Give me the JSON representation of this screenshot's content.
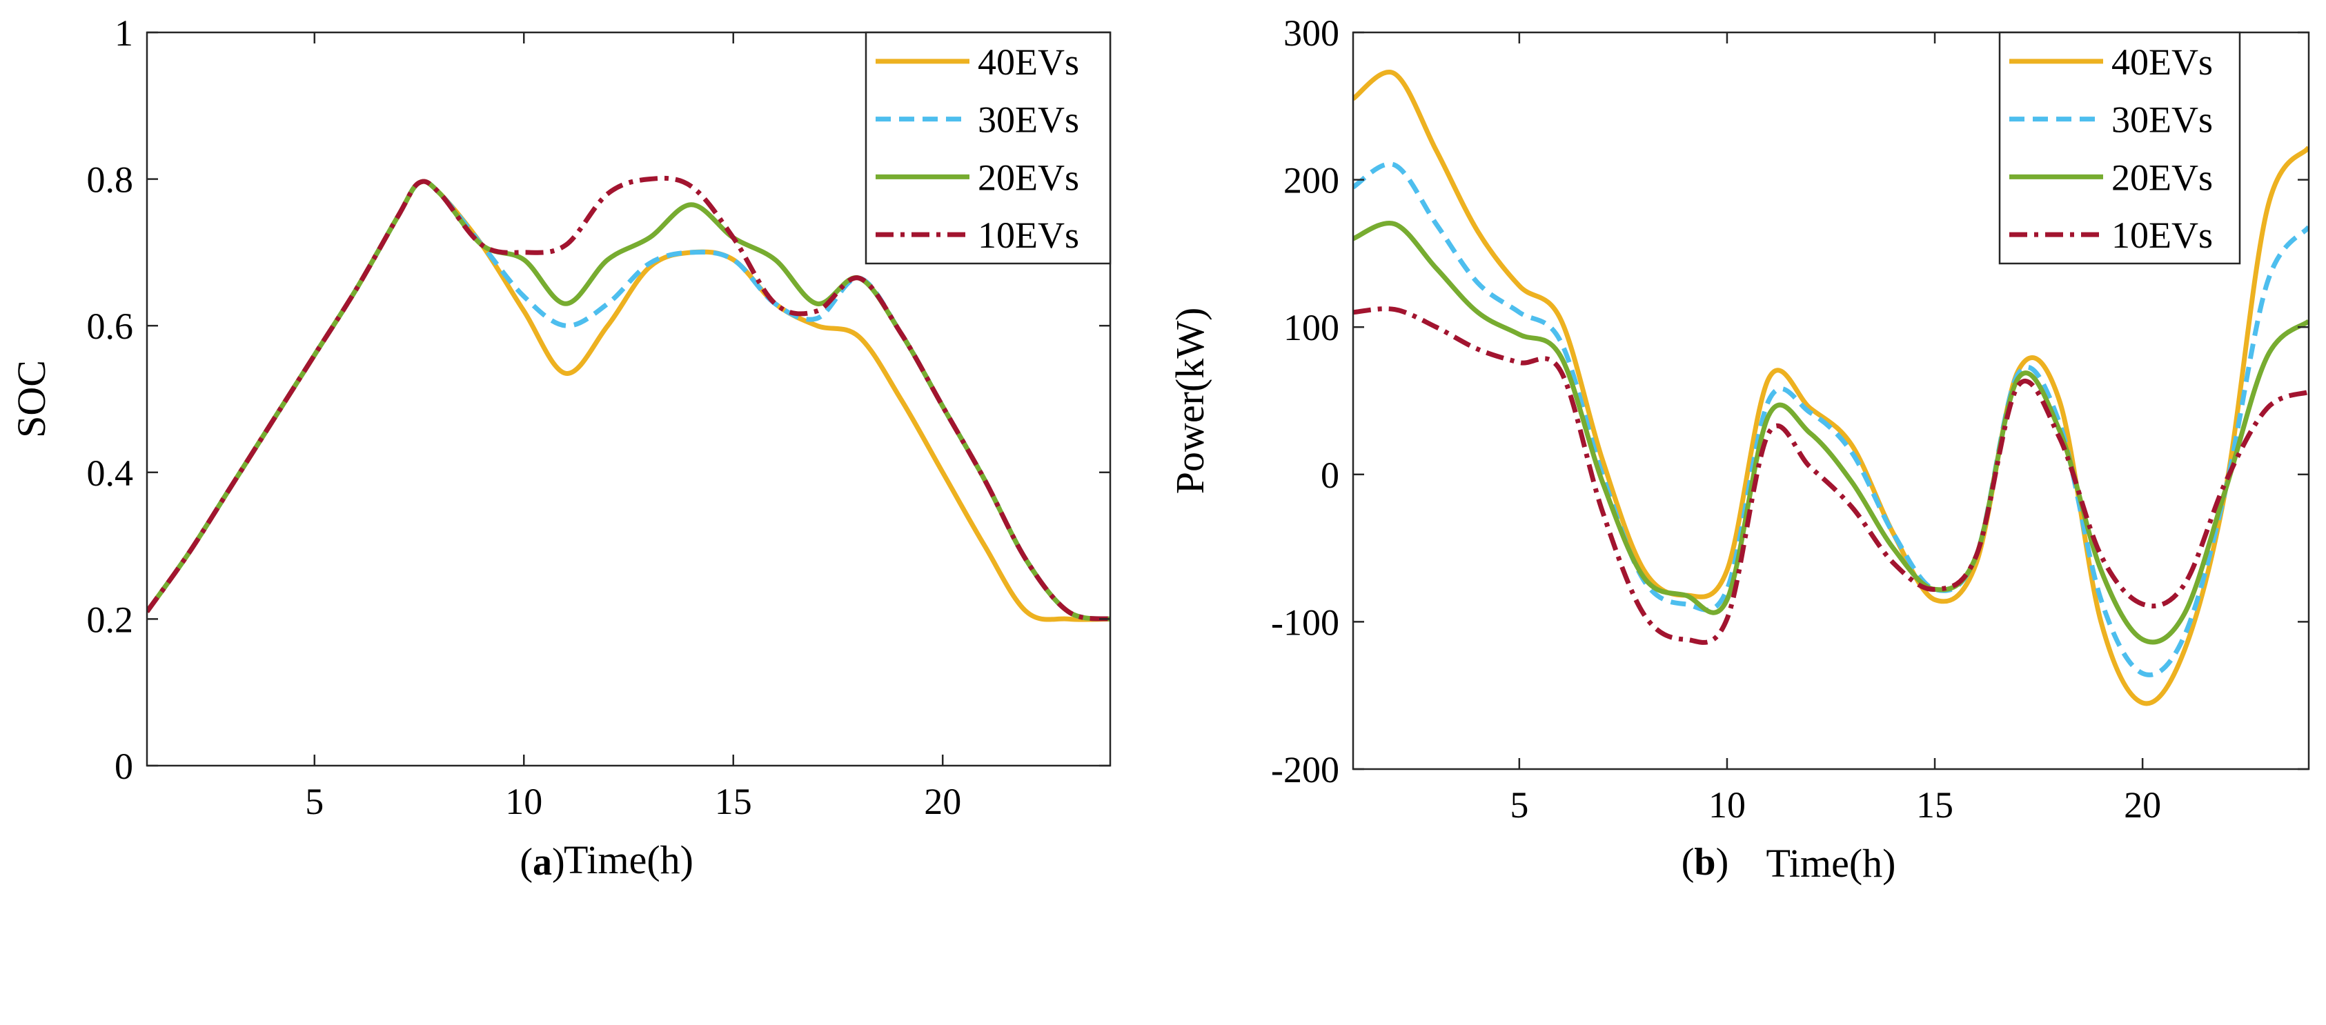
{
  "chart_data": [
    {
      "type": "line",
      "panel_label": "a",
      "xlabel": "Time(h)",
      "ylabel": "SOC",
      "xlim": [
        1,
        24
      ],
      "ylim": [
        0,
        1
      ],
      "xticks": [
        5,
        10,
        15,
        20
      ],
      "xtick_labels": [
        "5",
        "10",
        "15",
        "20"
      ],
      "yticks": [
        0,
        0.2,
        0.4,
        0.6,
        0.8,
        1
      ],
      "ytick_labels": [
        "0",
        "0.2",
        "0.4",
        "0.6",
        "0.8",
        "1"
      ],
      "legend_position": "top-right",
      "x": [
        1,
        2,
        3,
        4,
        5,
        6,
        7,
        7.5,
        8,
        9,
        10,
        11,
        12,
        13,
        14,
        15,
        16,
        17,
        18,
        19,
        20,
        21,
        22,
        23,
        24
      ],
      "series": [
        {
          "name": "40EVs",
          "color": "#EDB120",
          "dash": "solid",
          "values": [
            0.21,
            0.29,
            0.38,
            0.47,
            0.56,
            0.65,
            0.75,
            0.795,
            0.78,
            0.71,
            0.62,
            0.535,
            0.6,
            0.68,
            0.7,
            0.69,
            0.63,
            0.6,
            0.585,
            0.5,
            0.4,
            0.3,
            0.21,
            0.2,
            0.2
          ]
        },
        {
          "name": "30EVs",
          "color": "#4DBEEE",
          "dash": "dashed",
          "values": [
            0.21,
            0.29,
            0.38,
            0.47,
            0.56,
            0.65,
            0.75,
            0.795,
            0.78,
            0.71,
            0.64,
            0.6,
            0.63,
            0.685,
            0.7,
            0.69,
            0.63,
            0.61,
            0.665,
            0.59,
            0.49,
            0.39,
            0.28,
            0.21,
            0.2
          ]
        },
        {
          "name": "20EVs",
          "color": "#77AC30",
          "dash": "solid",
          "values": [
            0.21,
            0.29,
            0.38,
            0.47,
            0.56,
            0.65,
            0.75,
            0.795,
            0.78,
            0.71,
            0.69,
            0.63,
            0.69,
            0.72,
            0.765,
            0.72,
            0.69,
            0.63,
            0.665,
            0.59,
            0.49,
            0.39,
            0.28,
            0.21,
            0.2
          ]
        },
        {
          "name": "10EVs",
          "color": "#A2142F",
          "dash": "dashdot",
          "values": [
            0.21,
            0.29,
            0.38,
            0.47,
            0.56,
            0.65,
            0.75,
            0.795,
            0.78,
            0.71,
            0.7,
            0.71,
            0.78,
            0.8,
            0.79,
            0.72,
            0.63,
            0.62,
            0.665,
            0.59,
            0.49,
            0.39,
            0.28,
            0.21,
            0.2
          ]
        }
      ]
    },
    {
      "type": "line",
      "panel_label": "b",
      "xlabel": "Time(h)",
      "ylabel": "Power(kW)",
      "xlim": [
        1,
        24
      ],
      "ylim": [
        -200,
        300
      ],
      "xticks": [
        5,
        10,
        15,
        20
      ],
      "xtick_labels": [
        "5",
        "10",
        "15",
        "20"
      ],
      "yticks": [
        -200,
        -100,
        0,
        100,
        200,
        300
      ],
      "ytick_labels": [
        "-200",
        "-100",
        "0",
        "100",
        "200",
        "300"
      ],
      "legend_position": "top-right",
      "x": [
        1,
        2,
        3,
        4,
        5,
        6,
        7,
        8,
        9,
        10,
        11,
        12,
        13,
        14,
        15,
        16,
        17,
        18,
        19,
        20,
        21,
        22,
        23,
        24
      ],
      "series": [
        {
          "name": "40EVs",
          "color": "#EDB120",
          "dash": "solid",
          "values": [
            255,
            272,
            220,
            165,
            128,
            105,
            10,
            -65,
            -82,
            -65,
            65,
            45,
            20,
            -40,
            -85,
            -60,
            70,
            50,
            -100,
            -155,
            -120,
            -10,
            180,
            222
          ]
        },
        {
          "name": "30EVs",
          "color": "#4DBEEE",
          "dash": "dashed",
          "values": [
            195,
            210,
            170,
            130,
            110,
            90,
            0,
            -72,
            -88,
            -78,
            50,
            42,
            15,
            -40,
            -78,
            -55,
            68,
            35,
            -85,
            -135,
            -110,
            -10,
            130,
            168
          ]
        },
        {
          "name": "20EVs",
          "color": "#77AC30",
          "dash": "solid",
          "values": [
            160,
            170,
            140,
            110,
            95,
            80,
            -5,
            -70,
            -82,
            -85,
            40,
            28,
            -5,
            -50,
            -78,
            -55,
            65,
            30,
            -65,
            -112,
            -95,
            -10,
            80,
            104
          ]
        },
        {
          "name": "10EVs",
          "color": "#A2142F",
          "dash": "dashdot",
          "values": [
            110,
            112,
            100,
            85,
            76,
            70,
            -25,
            -95,
            -112,
            -98,
            28,
            5,
            -22,
            -60,
            -78,
            -55,
            60,
            25,
            -55,
            -88,
            -75,
            -5,
            45,
            56
          ]
        }
      ]
    }
  ]
}
